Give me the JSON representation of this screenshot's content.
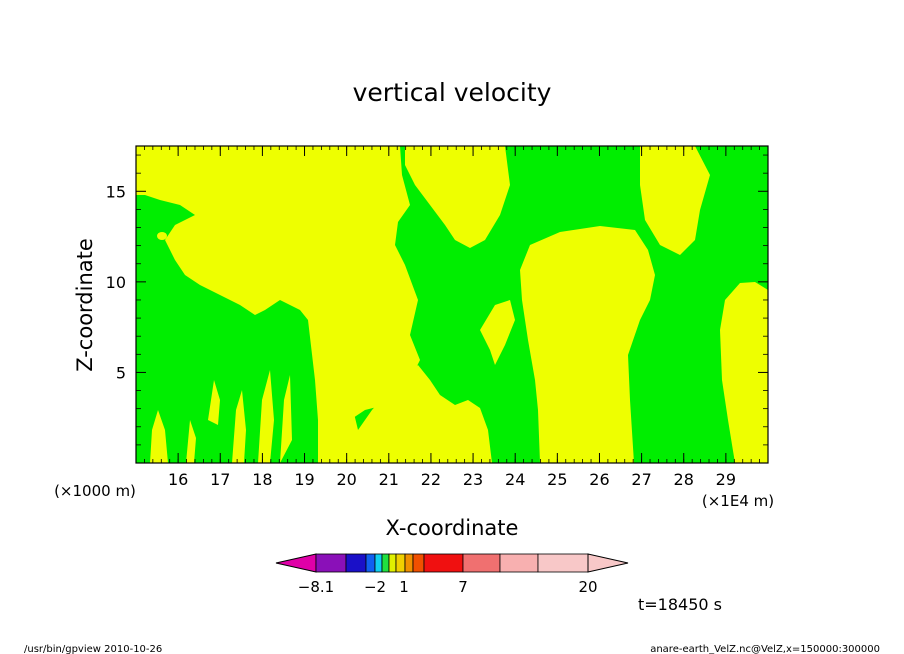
{
  "chart_data": {
    "type": "heatmap",
    "title": "vertical velocity",
    "xlabel": "X-coordinate",
    "ylabel": "Z-coordinate",
    "x_unit_left": "(×1000 m)",
    "x_unit_right": "(×1E4 m)",
    "xlim": [
      15.0,
      30.0
    ],
    "ylim": [
      0.0,
      17.5
    ],
    "x_ticks": [
      "16",
      "17",
      "18",
      "19",
      "20",
      "21",
      "22",
      "23",
      "24",
      "25",
      "26",
      "27",
      "28",
      "29"
    ],
    "y_ticks": [
      "5",
      "10",
      "15"
    ],
    "x_tick_values": [
      16,
      17,
      18,
      19,
      20,
      21,
      22,
      23,
      24,
      25,
      26,
      27,
      28,
      29
    ],
    "y_tick_values": [
      5,
      10,
      15
    ],
    "time_label": "t=18450 s",
    "colorbar": {
      "tick_labels": [
        "−8.1",
        "−2",
        "1",
        "7",
        "20"
      ],
      "colors": [
        "#e000a8",
        "#8a10b8",
        "#1a10c8",
        "#1060f0",
        "#10d0f0",
        "#20e040",
        "#e0f000",
        "#f0d000",
        "#f09000",
        "#f05000",
        "#f01010",
        "#f07070",
        "#f8b0b0",
        "#f8c8c8"
      ]
    },
    "regions": [
      {
        "value_class": "positive-small",
        "color": "#eeff00"
      },
      {
        "value_class": "near-zero-negative",
        "color": "#00ee00"
      }
    ]
  },
  "footer": {
    "left": "/usr/bin/gpview   2010-10-26",
    "right": "anare-earth_VelZ.nc@VelZ,x=150000:300000"
  }
}
